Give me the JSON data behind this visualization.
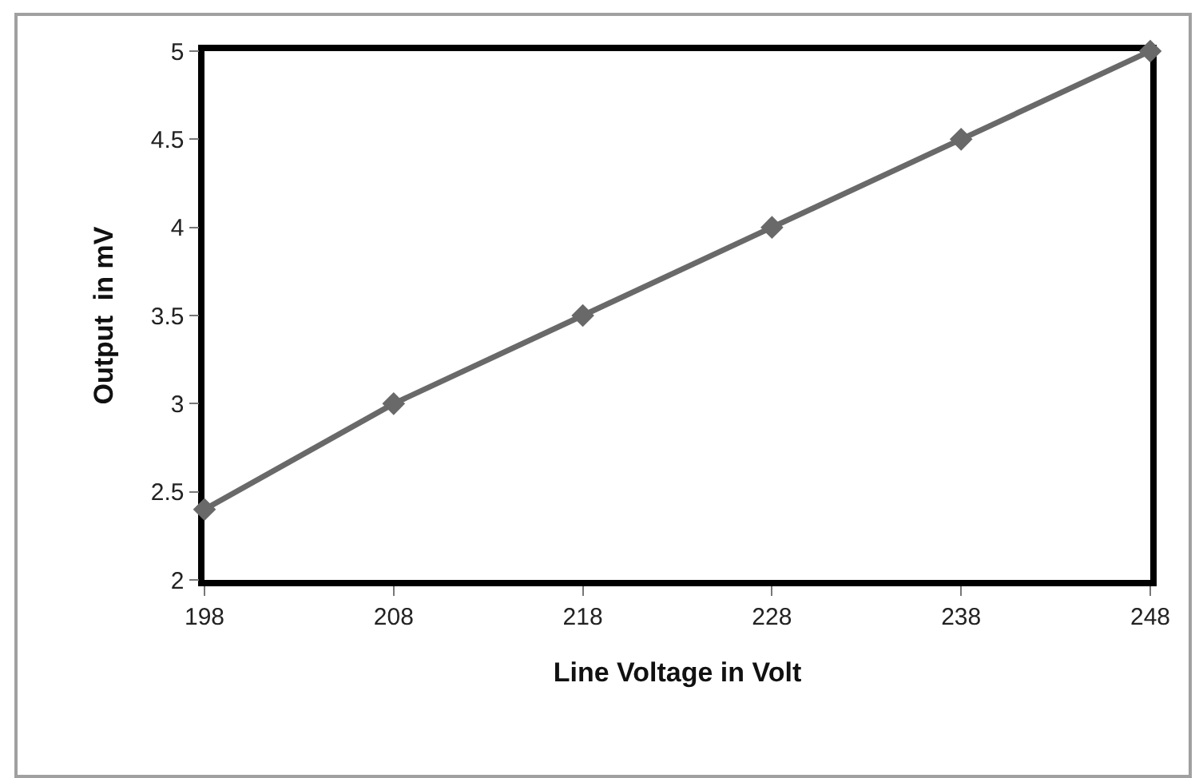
{
  "chart_data": {
    "type": "line",
    "xlabel": "Line Voltage in Volt",
    "ylabel": "Output  in mV",
    "x": [
      198,
      208,
      218,
      228,
      238,
      248
    ],
    "series": [
      {
        "color": "#696969",
        "values": [
          2.4,
          3,
          3.5,
          4,
          4.5,
          5
        ]
      }
    ],
    "xlim": [
      198,
      248
    ],
    "xticks": [
      198,
      208,
      218,
      228,
      238,
      248
    ],
    "ylim": [
      2,
      5
    ],
    "yticks": [
      2,
      2.5,
      3,
      3.5,
      4,
      4.5,
      5
    ],
    "grid": false,
    "marker": "diamond",
    "line_style": "solid"
  }
}
